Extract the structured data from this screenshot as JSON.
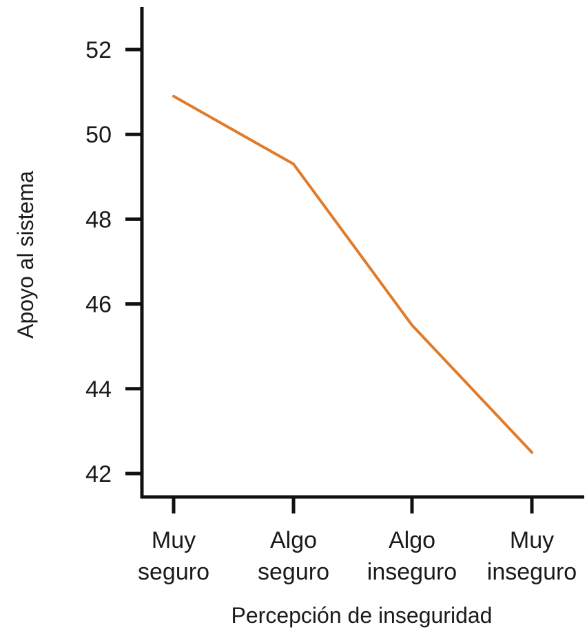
{
  "chart_data": {
    "type": "line",
    "categories": [
      [
        "Muy",
        "seguro"
      ],
      [
        "Algo",
        "seguro"
      ],
      [
        "Algo",
        "inseguro"
      ],
      [
        "Muy",
        "inseguro"
      ]
    ],
    "series": [
      {
        "values": [
          50.9,
          49.3,
          45.5,
          42.5
        ],
        "color": "#e07b2a"
      }
    ],
    "xlabel": "Percepción de inseguridad",
    "ylabel": "Apoyo al sistema",
    "yticks": [
      42,
      44,
      46,
      48,
      50,
      52
    ],
    "ylim": [
      41.6,
      52.8
    ],
    "grid": false,
    "legend": "none",
    "axis_color": "#111111"
  }
}
